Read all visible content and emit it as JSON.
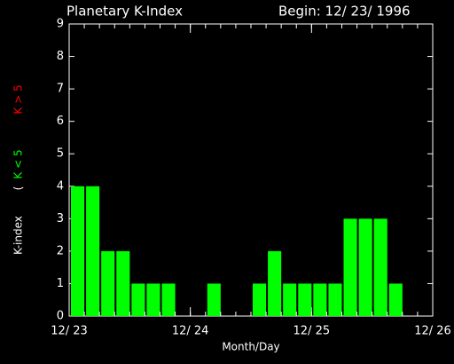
{
  "chart_data": {
    "type": "bar",
    "title": "Planetary K-Index",
    "subtitle": "Begin: 12/ 23/ 1996",
    "xlabel": "Month/Day",
    "ylabel": "K-index",
    "legend_prefix": "(",
    "legend": [
      {
        "label": "K < 5",
        "color": "#00ff00"
      },
      {
        "label": "K > 5",
        "color": "#ff0000"
      }
    ],
    "x": [
      0,
      3,
      6,
      9,
      12,
      15,
      18,
      21,
      24,
      27,
      30,
      33,
      36,
      39,
      42,
      45,
      48,
      51,
      54,
      57,
      60,
      63,
      66,
      69
    ],
    "values": [
      4,
      4,
      2,
      2,
      1,
      1,
      1,
      0,
      0,
      1,
      0,
      0,
      1,
      2,
      1,
      1,
      1,
      1,
      3,
      3,
      3,
      1,
      0,
      0
    ],
    "color": "#00ff00",
    "xlim": [
      0,
      72
    ],
    "xticks": [
      {
        "value": 0,
        "label": "12/ 23"
      },
      {
        "value": 24,
        "label": "12/ 24"
      },
      {
        "value": 48,
        "label": "12/ 25"
      },
      {
        "value": 72,
        "label": "12/ 26"
      }
    ],
    "ylim": [
      0,
      9
    ],
    "yticks": [
      0,
      1,
      2,
      3,
      4,
      5,
      6,
      7,
      8,
      9
    ]
  }
}
